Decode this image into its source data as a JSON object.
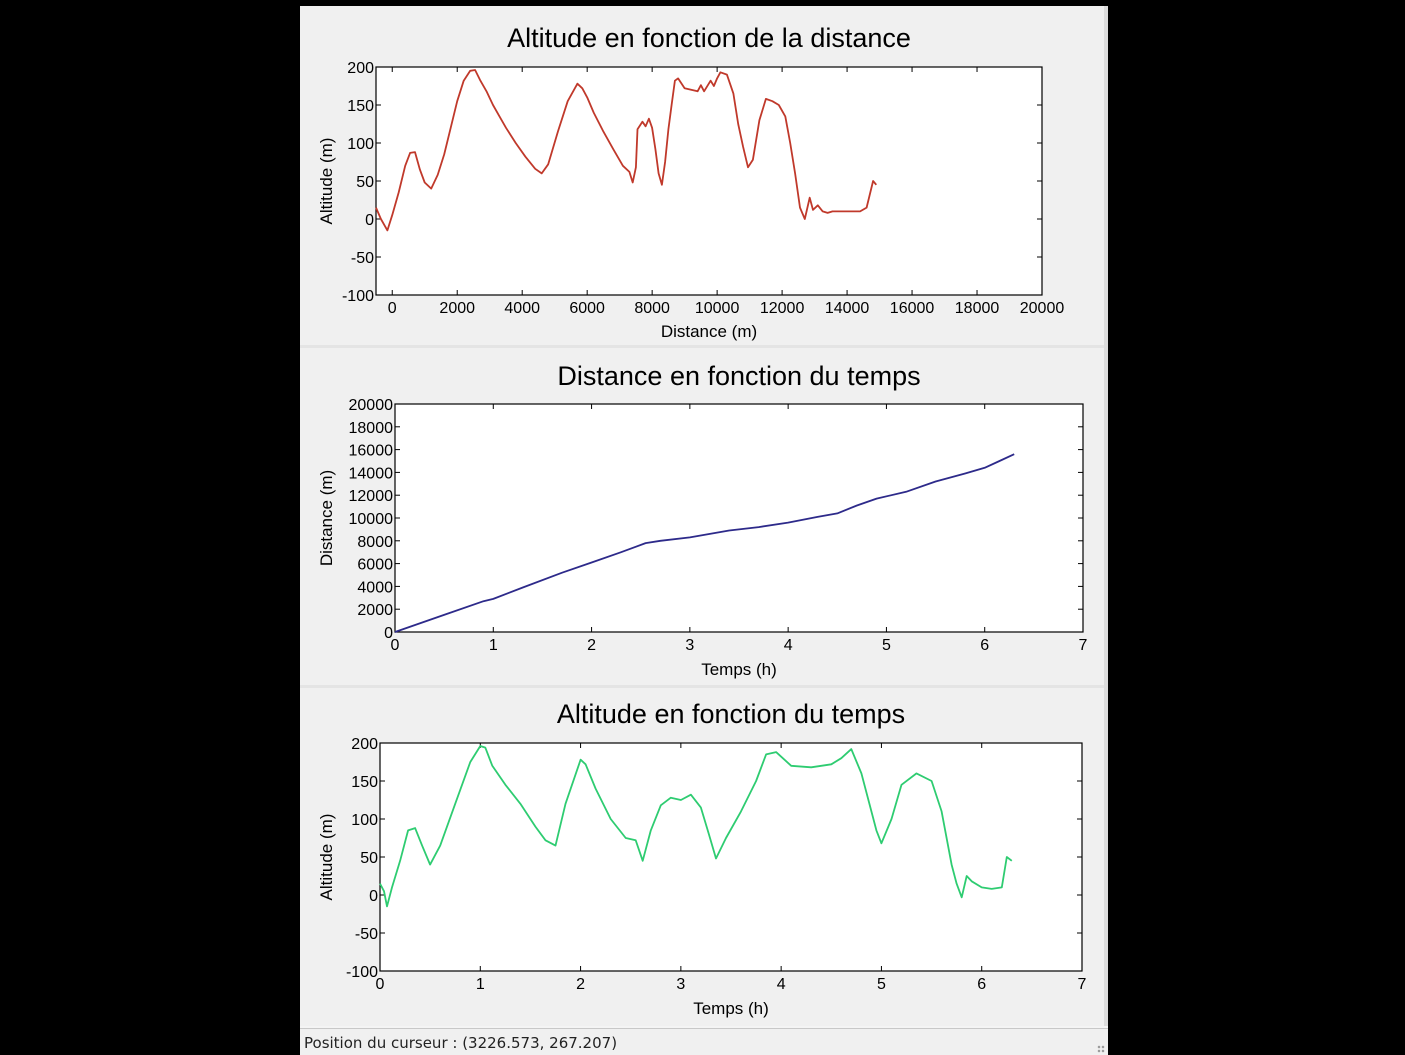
{
  "window": {
    "background": "#f0f0f0",
    "status_bar": {
      "label": "Position du curseur : ",
      "value": "(3226.573, 267.207)"
    }
  },
  "chart_data": [
    {
      "type": "line",
      "title": "Altitude en fonction de la distance",
      "xlabel": "Distance (m)",
      "ylabel": "Altitude (m)",
      "xlim": [
        -500,
        20000
      ],
      "ylim": [
        -100,
        200
      ],
      "xticks": [
        0,
        2000,
        4000,
        6000,
        8000,
        10000,
        12000,
        14000,
        16000,
        18000,
        20000
      ],
      "yticks": [
        -100,
        -50,
        0,
        50,
        100,
        150,
        200
      ],
      "grid": false,
      "color": "#c0392b",
      "series": [
        {
          "x": [
            -500,
            -350,
            -150,
            0,
            200,
            400,
            550,
            700,
            850,
            1000,
            1200,
            1400,
            1600,
            1800,
            2000,
            2200,
            2400,
            2550,
            2700,
            2900,
            3100,
            3300,
            3500,
            3800,
            4100,
            4400,
            4600,
            4800,
            5100,
            5400,
            5700,
            5850,
            6000,
            6200,
            6500,
            6800,
            7100,
            7300,
            7400,
            7500,
            7550,
            7700,
            7800,
            7900,
            8000,
            8100,
            8200,
            8300,
            8400,
            8500,
            8600,
            8700,
            8800,
            9000,
            9200,
            9400,
            9500,
            9600,
            9800,
            9900,
            10000,
            10100,
            10300,
            10500,
            10650,
            10800,
            10950,
            11100,
            11300,
            11500,
            11700,
            11900,
            12100,
            12250,
            12400,
            12550,
            12700,
            12850,
            12950,
            13100,
            13250,
            13400,
            13550,
            13800,
            14100,
            14400,
            14600,
            14800,
            14900
          ],
          "y": [
            15,
            0,
            -15,
            5,
            35,
            70,
            87,
            88,
            65,
            48,
            40,
            58,
            85,
            120,
            155,
            182,
            195,
            196,
            183,
            168,
            150,
            135,
            120,
            100,
            82,
            66,
            60,
            72,
            115,
            155,
            178,
            172,
            160,
            140,
            115,
            92,
            70,
            62,
            48,
            68,
            118,
            128,
            122,
            132,
            120,
            92,
            60,
            45,
            75,
            118,
            150,
            182,
            185,
            172,
            170,
            168,
            176,
            168,
            182,
            175,
            185,
            193,
            190,
            165,
            125,
            95,
            68,
            78,
            130,
            158,
            155,
            150,
            135,
            100,
            60,
            15,
            0,
            28,
            12,
            18,
            10,
            8,
            10,
            10,
            10,
            10,
            15,
            50,
            45
          ]
        }
      ]
    },
    {
      "type": "line",
      "title": "Distance en fonction du temps",
      "xlabel": "Temps (h)",
      "ylabel": "Distance (m)",
      "xlim": [
        0,
        7
      ],
      "ylim": [
        0,
        20000
      ],
      "xticks": [
        0,
        1,
        2,
        3,
        4,
        5,
        6,
        7
      ],
      "yticks": [
        0,
        2000,
        4000,
        6000,
        8000,
        10000,
        12000,
        14000,
        16000,
        18000,
        20000
      ],
      "grid": false,
      "color": "#2d2a8a",
      "series": [
        {
          "x": [
            0,
            0.5,
            0.9,
            1.0,
            1.3,
            1.7,
            2.0,
            2.3,
            2.55,
            2.7,
            3.0,
            3.4,
            3.7,
            4.0,
            4.3,
            4.5,
            4.7,
            4.9,
            5.2,
            5.5,
            5.8,
            6.0,
            6.15,
            6.3
          ],
          "y": [
            0,
            1500,
            2700,
            2900,
            3900,
            5200,
            6100,
            7000,
            7800,
            8000,
            8300,
            8900,
            9200,
            9600,
            10100,
            10400,
            11100,
            11700,
            12300,
            13200,
            13900,
            14400,
            15000,
            15600
          ]
        }
      ]
    },
    {
      "type": "line",
      "title": "Altitude en fonction du temps",
      "xlabel": "Temps (h)",
      "ylabel": "Altitude (m)",
      "xlim": [
        0,
        7
      ],
      "ylim": [
        -100,
        200
      ],
      "xticks": [
        0,
        1,
        2,
        3,
        4,
        5,
        6,
        7
      ],
      "yticks": [
        -100,
        -50,
        0,
        50,
        100,
        150,
        200
      ],
      "grid": false,
      "color": "#2ecc71",
      "series": [
        {
          "x": [
            0,
            0.04,
            0.07,
            0.12,
            0.2,
            0.28,
            0.35,
            0.42,
            0.5,
            0.6,
            0.75,
            0.9,
            1.0,
            1.05,
            1.12,
            1.25,
            1.4,
            1.55,
            1.65,
            1.75,
            1.85,
            2.0,
            2.05,
            2.15,
            2.3,
            2.45,
            2.55,
            2.62,
            2.7,
            2.8,
            2.9,
            3.0,
            3.1,
            3.2,
            3.28,
            3.35,
            3.45,
            3.6,
            3.75,
            3.85,
            3.95,
            4.1,
            4.3,
            4.5,
            4.6,
            4.7,
            4.8,
            4.9,
            4.95,
            5.0,
            5.1,
            5.2,
            5.35,
            5.5,
            5.6,
            5.7,
            5.75,
            5.8,
            5.85,
            5.9,
            6.0,
            6.1,
            6.2,
            6.25,
            6.3
          ],
          "y": [
            15,
            5,
            -15,
            10,
            45,
            85,
            88,
            65,
            40,
            65,
            120,
            175,
            196,
            194,
            170,
            145,
            120,
            90,
            72,
            65,
            120,
            178,
            172,
            140,
            100,
            75,
            72,
            45,
            85,
            118,
            128,
            125,
            132,
            115,
            80,
            48,
            75,
            110,
            150,
            185,
            188,
            170,
            168,
            172,
            180,
            192,
            160,
            110,
            85,
            68,
            100,
            145,
            160,
            150,
            110,
            40,
            15,
            -3,
            25,
            18,
            10,
            8,
            10,
            50,
            45
          ]
        }
      ]
    }
  ]
}
